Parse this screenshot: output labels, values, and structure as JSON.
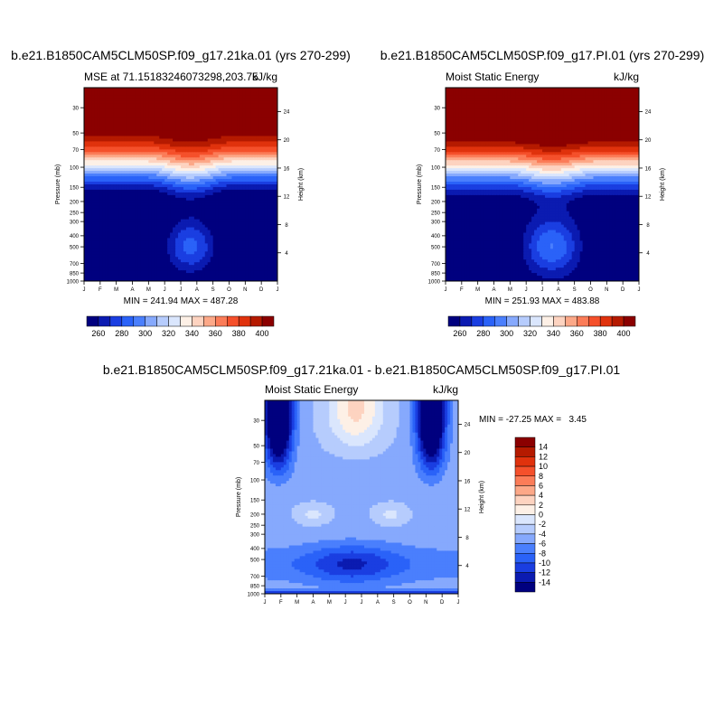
{
  "month_labels": [
    "J",
    "F",
    "M",
    "A",
    "M",
    "J",
    "J",
    "A",
    "S",
    "O",
    "N",
    "D",
    "J"
  ],
  "pressure_ticks": [
    "30",
    "50",
    "70",
    "100",
    "150",
    "200",
    "250",
    "300",
    "400",
    "500",
    "700",
    "850",
    "1000"
  ],
  "height_ticks": [
    "24",
    "20",
    "16",
    "12",
    "8",
    "4"
  ],
  "ylabel": "Pressure (mb)",
  "y2label": "Height (km)",
  "abs_palette": [
    "#00007f",
    "#0b1bb1",
    "#1a3ee1",
    "#2a62f8",
    "#4a7ffd",
    "#86a9fd",
    "#b6ccfd",
    "#dae6fd",
    "#fdf0e6",
    "#fdd3c0",
    "#fca888",
    "#fb7c58",
    "#f5502b",
    "#e0320d",
    "#b51a00",
    "#8b0000"
  ],
  "diff_palette": [
    "#00007f",
    "#0b1bb1",
    "#1a3ee1",
    "#2a62f8",
    "#4a7ffd",
    "#86a9fd",
    "#b6ccfd",
    "#dae6fd",
    "#fdf0e6",
    "#fdd3c0",
    "#fca888",
    "#fb7c58",
    "#f5502b",
    "#e0320d",
    "#b51a00",
    "#8b0000"
  ],
  "chart_data": [
    {
      "type": "heatmap",
      "title": "b.e21.B1850CAM5CLM50SP.f09_g17.21ka.01 (yrs 270-299)",
      "left_subtitle": "MSE at 71.15183246073298,203.75",
      "units": "kJ/kg",
      "xlabel": "",
      "ylabel": "Pressure (mb)",
      "y2label": "Height (km)",
      "stats": "MIN = 241.94 MAX = 487.28",
      "colorbar_ticks": [
        "260",
        "280",
        "300",
        "320",
        "340",
        "360",
        "380",
        "400"
      ],
      "levels_range": [
        250,
        410
      ],
      "contour_interval": 10,
      "variant": "lgm"
    },
    {
      "type": "heatmap",
      "title": "b.e21.B1850CAM5CLM50SP.f09_g17.PI.01 (yrs 270-299)",
      "left_subtitle": "Moist Static Energy",
      "units": "kJ/kg",
      "xlabel": "",
      "ylabel": "Pressure (mb)",
      "y2label": "Height (km)",
      "stats": "MIN = 251.93 MAX = 483.88",
      "colorbar_ticks": [
        "260",
        "280",
        "300",
        "320",
        "340",
        "360",
        "380",
        "400"
      ],
      "levels_range": [
        250,
        410
      ],
      "contour_interval": 10,
      "variant": "pi"
    },
    {
      "type": "heatmap",
      "title": "b.e21.B1850CAM5CLM50SP.f09_g17.21ka.01 - b.e21.B1850CAM5CLM50SP.f09_g17.PI.01",
      "left_subtitle": "Moist Static Energy",
      "units": "kJ/kg",
      "xlabel": "",
      "ylabel": "Pressure (mb)",
      "y2label": "Height (km)",
      "stats": "MIN = -27.25 MAX =   3.45",
      "colorbar_ticks": [
        "14",
        "12",
        "10",
        "8",
        "6",
        "4",
        "2",
        "0",
        "-2",
        "-4",
        "-6",
        "-8",
        "-10",
        "-12",
        "-14"
      ],
      "levels_range": [
        -16,
        16
      ],
      "contour_interval": 2,
      "variant": "diff"
    }
  ]
}
